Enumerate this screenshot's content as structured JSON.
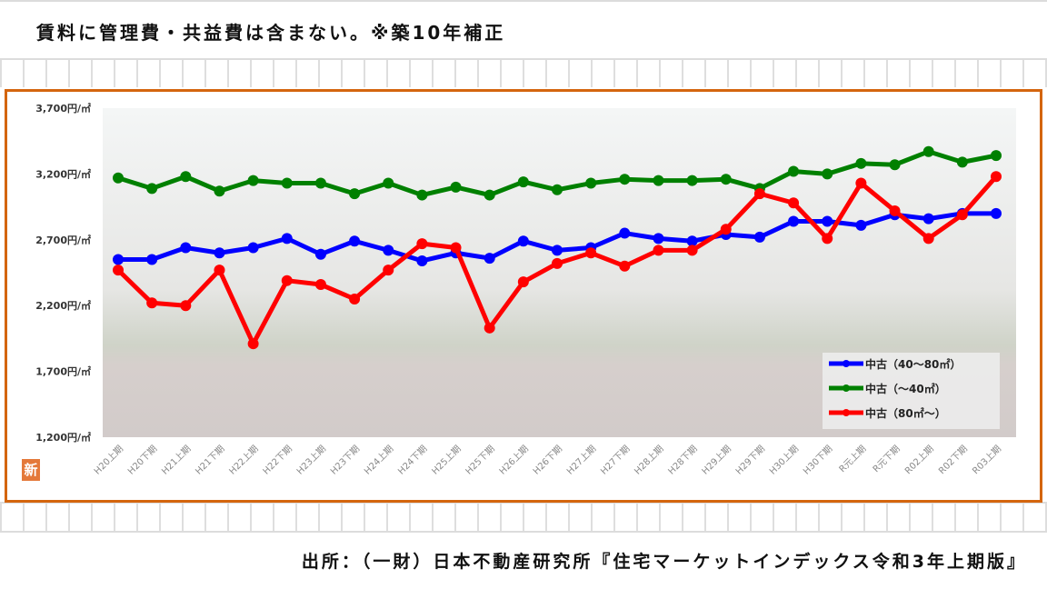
{
  "header": {
    "note": "賃料に管理費・共益費は含まない。※築10年補正"
  },
  "footer": {
    "source": "出所：（一財）日本不動産研究所『住宅マーケットインデックス令和3年上期版』"
  },
  "logo_text": "新",
  "chart_data": {
    "type": "line",
    "title": "",
    "xlabel": "",
    "ylabel": "",
    "ylim": [
      1200,
      3700
    ],
    "yticks": [
      1200,
      1700,
      2200,
      2700,
      3200,
      3700
    ],
    "ytick_labels": [
      "1,200円/㎡",
      "1,700円/㎡",
      "2,200円/㎡",
      "2,700円/㎡",
      "3,200円/㎡",
      "3,700円/㎡"
    ],
    "categories": [
      "H20上期",
      "H20下期",
      "H21上期",
      "H21下期",
      "H22上期",
      "H22下期",
      "H23上期",
      "H23下期",
      "H24上期",
      "H24下期",
      "H25上期",
      "H25下期",
      "H26上期",
      "H26下期",
      "H27上期",
      "H27下期",
      "H28上期",
      "H28下期",
      "H29上期",
      "H29下期",
      "H30上期",
      "H30下期",
      "R元上期",
      "R元下期",
      "R02上期",
      "R02下期",
      "R03上期"
    ],
    "legend_position": "bottom-right",
    "grid": false,
    "series": [
      {
        "name": "中古（40～80㎡）",
        "color": "#0000ff",
        "values": [
          2550,
          2550,
          2640,
          2600,
          2640,
          2710,
          2590,
          2690,
          2620,
          2540,
          2600,
          2560,
          2690,
          2620,
          2640,
          2750,
          2710,
          2690,
          2740,
          2720,
          2840,
          2840,
          2810,
          2890,
          2860,
          2900,
          2900
        ]
      },
      {
        "name": "中古（～40㎡）",
        "color": "#008000",
        "values": [
          3170,
          3090,
          3180,
          3070,
          3150,
          3130,
          3130,
          3050,
          3130,
          3040,
          3100,
          3040,
          3140,
          3080,
          3130,
          3160,
          3150,
          3150,
          3160,
          3090,
          3220,
          3200,
          3280,
          3270,
          3370,
          3290,
          3340
        ]
      },
      {
        "name": "中古（80㎡～）",
        "color": "#ff0000",
        "values": [
          2470,
          2220,
          2200,
          2470,
          1910,
          2390,
          2360,
          2250,
          2470,
          2670,
          2640,
          2030,
          2380,
          2520,
          2600,
          2500,
          2620,
          2620,
          2780,
          3050,
          2980,
          2710,
          3130,
          2920,
          2710,
          2890,
          3180
        ]
      }
    ]
  }
}
